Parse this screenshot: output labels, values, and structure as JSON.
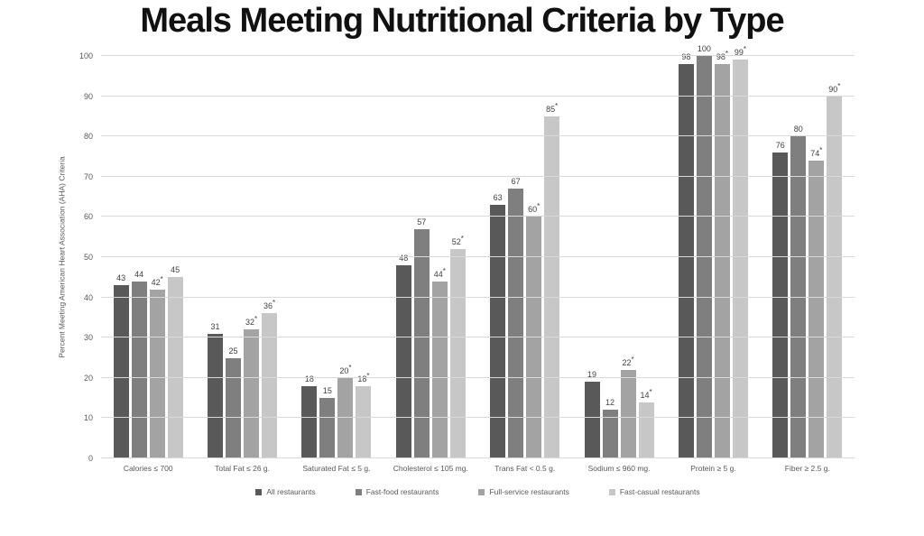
{
  "title": "Meals Meeting Nutritional Criteria by Type",
  "chart_data": {
    "type": "bar",
    "title": "Meals Meeting Nutritional Criteria by Type",
    "xlabel": "",
    "ylabel": "Percent Meeting American Heart Association (AHA) Criteria",
    "ylim": [
      0,
      100
    ],
    "yticks": [
      0,
      10,
      20,
      30,
      40,
      50,
      60,
      70,
      80,
      90,
      100
    ],
    "grid": true,
    "legend_position": "bottom",
    "significance_marker": "*",
    "categories": [
      "Calories ≤ 700",
      "Total Fat ≤ 26 g.",
      "Saturated Fat ≤ 5 g.",
      "Cholesterol ≤ 105 mg.",
      "Trans Fat < 0.5 g.",
      "Sodium ≤ 960 mg.",
      "Protein ≥ 5 g.",
      "Fiber ≥ 2.5 g."
    ],
    "series": [
      {
        "name": "All restaurants",
        "color": "#595959",
        "values": [
          43,
          31,
          18,
          48,
          63,
          19,
          98,
          76
        ],
        "asterisks": [
          false,
          false,
          false,
          false,
          false,
          false,
          false,
          false
        ]
      },
      {
        "name": "Fast-food restaurants",
        "color": "#7f7f7f",
        "values": [
          44,
          25,
          15,
          57,
          67,
          12,
          100,
          80
        ],
        "asterisks": [
          false,
          false,
          false,
          false,
          false,
          false,
          false,
          false
        ]
      },
      {
        "name": "Full-service restaurants",
        "color": "#a3a3a3",
        "values": [
          42,
          32,
          20,
          44,
          60,
          22,
          98,
          74
        ],
        "asterisks": [
          true,
          true,
          true,
          true,
          true,
          true,
          true,
          true
        ]
      },
      {
        "name": "Fast-casual restaurants",
        "color": "#c7c7c7",
        "values": [
          45,
          36,
          18,
          52,
          85,
          14,
          99,
          90
        ],
        "asterisks": [
          false,
          true,
          true,
          true,
          true,
          true,
          true,
          true
        ]
      }
    ]
  }
}
